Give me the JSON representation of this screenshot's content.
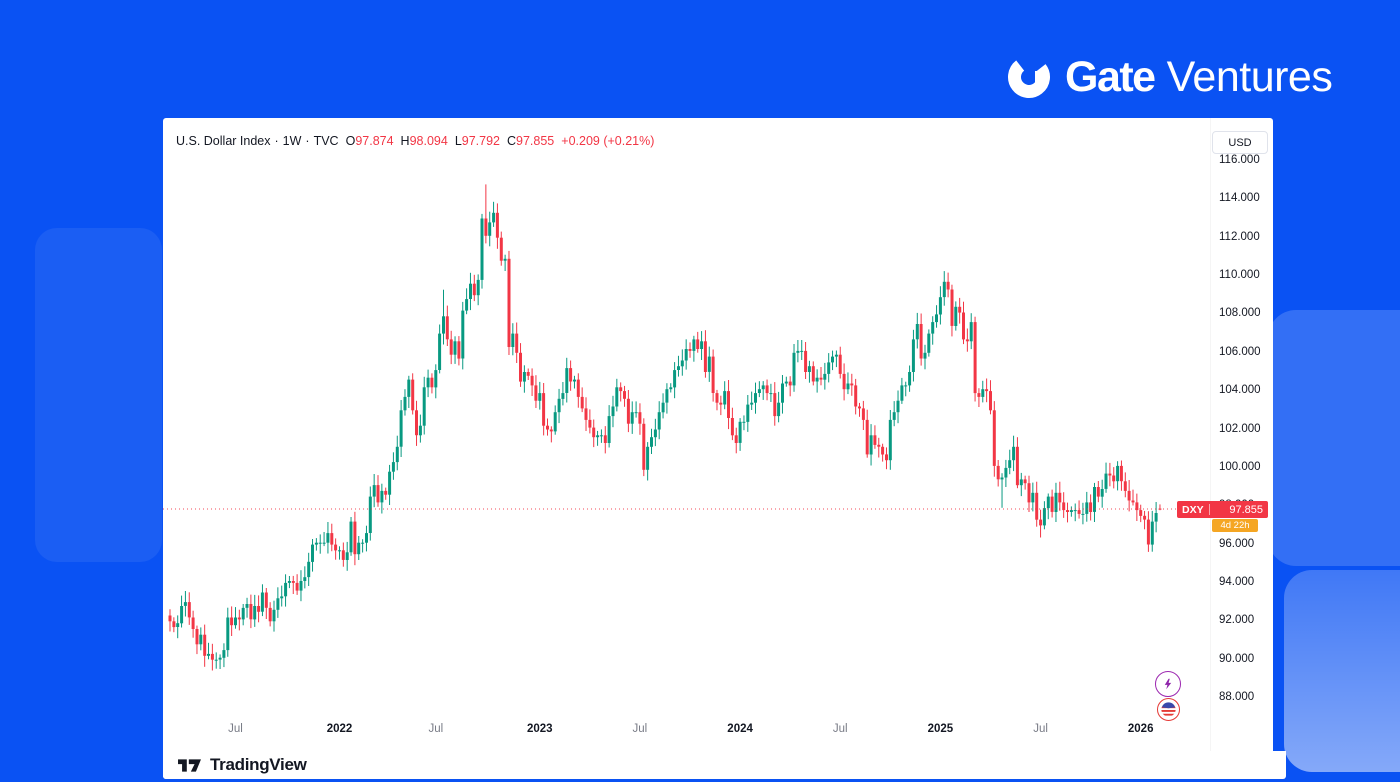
{
  "brand": {
    "name_bold": "Gate",
    "name_light": "Ventures"
  },
  "chart_header": {
    "symbol_title": "U.S. Dollar Index",
    "separator": "·",
    "interval": "1W",
    "exchange": "TVC",
    "ohlc": {
      "o_label": "O",
      "o": "97.874",
      "h_label": "H",
      "h": "98.094",
      "l_label": "L",
      "l": "97.792",
      "c_label": "C",
      "c": "97.855",
      "change": "+0.209 (+0.21%)"
    }
  },
  "price_scale": {
    "currency": "USD",
    "ticks": [
      {
        "p": 116,
        "label": "116.000"
      },
      {
        "p": 114,
        "label": "114.000"
      },
      {
        "p": 112,
        "label": "112.000"
      },
      {
        "p": 110,
        "label": "110.000"
      },
      {
        "p": 108,
        "label": "108.000"
      },
      {
        "p": 106,
        "label": "106.000"
      },
      {
        "p": 104,
        "label": "104.000"
      },
      {
        "p": 102,
        "label": "102.000"
      },
      {
        "p": 100,
        "label": "100.000"
      },
      {
        "p": 98,
        "label": "98.000"
      },
      {
        "p": 96,
        "label": "96.000"
      },
      {
        "p": 94,
        "label": "94.000"
      },
      {
        "p": 92,
        "label": "92.000"
      },
      {
        "p": 90,
        "label": "90.000"
      },
      {
        "p": 88,
        "label": "88.000"
      }
    ]
  },
  "time_scale": {
    "labels": [
      {
        "text": "Jul",
        "i": 17,
        "year": false
      },
      {
        "text": "2022",
        "i": 44,
        "year": true
      },
      {
        "text": "Jul",
        "i": 69,
        "year": false
      },
      {
        "text": "2023",
        "i": 96,
        "year": true
      },
      {
        "text": "Jul",
        "i": 122,
        "year": false
      },
      {
        "text": "2024",
        "i": 148,
        "year": true
      },
      {
        "text": "Jul",
        "i": 174,
        "year": false
      },
      {
        "text": "2025",
        "i": 200,
        "year": true
      },
      {
        "text": "Jul",
        "i": 226,
        "year": false
      },
      {
        "text": "2026",
        "i": 252,
        "year": true
      }
    ]
  },
  "price_tag": {
    "symbol": "DXY",
    "price": "97.855",
    "countdown": "4d 22h"
  },
  "footer": {
    "logo_text": "TradingView"
  },
  "colors": {
    "background": "#0a52f3",
    "candle_up": "#089981",
    "candle_down": "#f23645",
    "price_line": "#f23645",
    "tag_bg": "#f23645",
    "countdown_bg": "#f5a623",
    "axis_text": "#131722",
    "muted_text": "#787b86"
  },
  "chart_data": {
    "type": "candlestick",
    "title": "U.S. Dollar Index (DXY), weekly candles",
    "interval": "1W",
    "exchange": "TVC",
    "x_range": "Mar 2021 - Feb 2026",
    "ylim": [
      87.6,
      116.9
    ],
    "y_ticks": [
      88,
      90,
      92,
      94,
      96,
      98,
      100,
      102,
      104,
      106,
      108,
      110,
      112,
      114,
      116
    ],
    "current_price": 97.855,
    "first_open": 92.3,
    "closes": [
      92.0,
      91.7,
      91.9,
      92.8,
      93.0,
      92.2,
      91.6,
      90.8,
      91.3,
      90.2,
      90.3,
      90.0,
      90.0,
      90.1,
      90.5,
      92.2,
      91.8,
      92.2,
      92.1,
      92.7,
      92.9,
      92.1,
      92.8,
      92.5,
      93.5,
      92.7,
      92.0,
      92.6,
      93.2,
      93.3,
      94.0,
      94.1,
      94.0,
      93.6,
      94.1,
      94.3,
      95.1,
      96.0,
      96.1,
      96.1,
      96.1,
      96.6,
      96.0,
      95.7,
      95.7,
      95.2,
      95.6,
      97.2,
      95.5,
      96.1,
      96.1,
      96.6,
      98.5,
      99.1,
      98.2,
      98.8,
      98.6,
      99.8,
      100.3,
      101.1,
      103.0,
      103.7,
      104.6,
      103.0,
      101.7,
      102.2,
      104.2,
      104.7,
      104.2,
      105.1,
      107.0,
      107.9,
      106.7,
      105.9,
      106.6,
      105.7,
      108.2,
      108.8,
      109.6,
      109.0,
      109.8,
      113.0,
      112.1,
      112.8,
      113.3,
      112.0,
      110.8,
      110.9,
      106.3,
      107.0,
      106.0,
      104.5,
      105.0,
      104.8,
      104.3,
      103.5,
      103.9,
      102.2,
      102.0,
      101.9,
      102.9,
      103.6,
      103.9,
      105.2,
      104.5,
      104.6,
      103.7,
      103.1,
      102.5,
      102.1,
      101.6,
      101.7,
      101.7,
      101.3,
      102.7,
      103.2,
      104.2,
      104.0,
      103.6,
      102.3,
      102.9,
      102.9,
      102.3,
      99.9,
      101.1,
      101.6,
      102.0,
      102.9,
      103.4,
      104.1,
      104.2,
      105.1,
      105.3,
      105.6,
      106.2,
      106.1,
      106.7,
      106.2,
      106.6,
      105.0,
      105.8,
      103.9,
      103.4,
      103.3,
      104.0,
      102.6,
      101.7,
      101.3,
      102.4,
      102.4,
      103.3,
      103.4,
      103.9,
      104.1,
      104.3,
      103.9,
      103.9,
      102.7,
      103.4,
      104.4,
      104.5,
      104.3,
      106.0,
      106.1,
      106.1,
      105.0,
      105.3,
      104.5,
      104.7,
      104.6,
      104.9,
      105.5,
      105.8,
      105.9,
      104.9,
      104.1,
      104.4,
      104.3,
      103.2,
      103.1,
      102.5,
      100.7,
      101.7,
      101.2,
      101.1,
      100.7,
      100.4,
      102.5,
      102.9,
      103.5,
      104.3,
      104.3,
      105.0,
      106.7,
      107.5,
      105.7,
      106.0,
      107.0,
      107.6,
      108.0,
      108.9,
      109.7,
      109.3,
      107.4,
      108.4,
      108.1,
      106.7,
      106.6,
      107.6,
      103.9,
      103.7,
      104.1,
      104.0,
      103.0,
      100.1,
      99.4,
      99.5,
      100.0,
      100.4,
      101.1,
      99.1,
      99.4,
      99.2,
      98.2,
      98.7,
      97.3,
      97.0,
      97.9,
      98.5,
      97.7,
      98.7,
      98.2,
      97.8,
      97.7,
      97.8,
      97.8,
      97.6,
      97.6,
      98.2,
      97.7,
      99.0,
      98.5,
      98.9,
      99.7,
      99.6,
      99.3,
      100.1,
      99.3,
      98.8,
      98.3,
      98.2,
      97.8,
      97.5,
      97.3,
      96.0,
      97.2,
      97.646,
      97.855
    ],
    "overrides": [
      {
        "i": 12,
        "l": 89.53
      },
      {
        "i": 47,
        "h": 97.44
      },
      {
        "i": 71,
        "h": 109.29
      },
      {
        "i": 82,
        "h": 114.78
      },
      {
        "i": 123,
        "l": 99.57
      },
      {
        "i": 181,
        "l": 100.53
      },
      {
        "i": 202,
        "h": 110.18
      },
      {
        "i": 216,
        "l": 97.92
      },
      {
        "i": 226,
        "l": 96.37
      },
      {
        "i": 254,
        "l": 95.62
      },
      {
        "i": 257,
        "o": 97.874,
        "h": 98.094,
        "l": 97.792
      }
    ],
    "last_candle": {
      "o": 97.874,
      "h": 98.094,
      "l": 97.792,
      "c": 97.855
    }
  }
}
